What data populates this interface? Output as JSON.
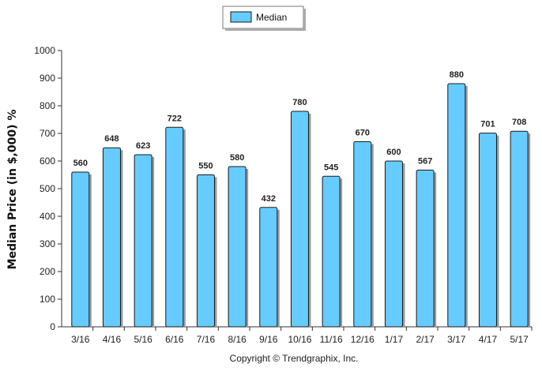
{
  "chart_data": {
    "type": "bar",
    "categories": [
      "3/16",
      "4/16",
      "5/16",
      "6/16",
      "7/16",
      "8/16",
      "9/16",
      "10/16",
      "11/16",
      "12/16",
      "1/17",
      "2/17",
      "3/17",
      "4/17",
      "5/17"
    ],
    "series": [
      {
        "name": "Median",
        "values": [
          560,
          648,
          623,
          722,
          550,
          580,
          432,
          780,
          545,
          670,
          600,
          567,
          880,
          701,
          708
        ]
      }
    ],
    "ylabel": "Median Price (in $,000) %",
    "xlabel": "",
    "ylim": [
      0,
      1000
    ],
    "yticks": [
      "0",
      "100",
      "200",
      "300",
      "400",
      "500",
      "600",
      "700",
      "800",
      "900",
      "1000"
    ],
    "grid": false,
    "legend_position": "top-center",
    "bar_color": "#66ccff",
    "bar_stroke": "#1a1a1a"
  },
  "footer": {
    "copyright": "Copyright © Trendgraphix, Inc."
  }
}
